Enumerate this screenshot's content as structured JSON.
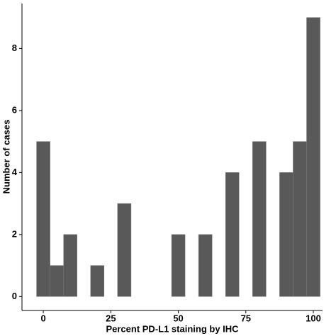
{
  "chart_data": {
    "type": "histogram",
    "x_label": "Percent PD-L1 staining by IHC",
    "y_label": "Number of cases",
    "bins": [
      -2.5,
      2.5,
      7.5,
      12.5,
      17.5,
      22.5,
      27.5,
      32.5,
      37.5,
      42.5,
      47.5,
      52.5,
      57.5,
      62.5,
      67.5,
      72.5,
      77.5,
      82.5,
      87.5,
      92.5,
      97.5,
      102.5
    ],
    "counts": [
      5,
      1,
      2,
      0,
      1,
      0,
      3,
      0,
      0,
      0,
      2,
      0,
      2,
      0,
      4,
      0,
      5,
      0,
      4,
      5,
      9
    ],
    "color": "#595959",
    "xlim": [
      -7.9,
      103.4
    ],
    "xticks": [
      0,
      25,
      50,
      75,
      100
    ],
    "ylim": [
      -0.45,
      9.45
    ],
    "yticks": [
      0,
      2,
      4,
      6,
      8
    ]
  }
}
